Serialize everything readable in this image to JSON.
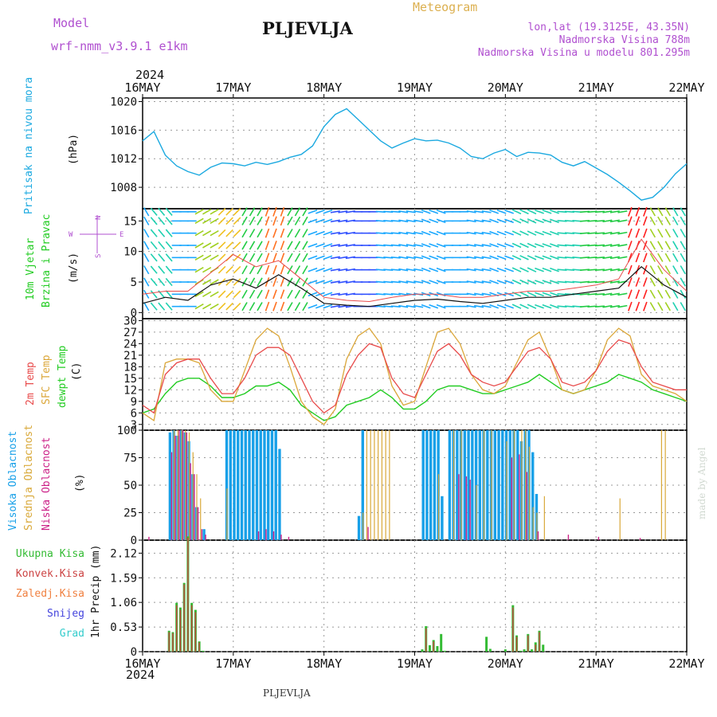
{
  "header": {
    "model_label": "Model",
    "model_name": "wrf-nmm_v3.9.1 e1km",
    "station": "PLJEVLJA",
    "meteogram": "Meteogram",
    "coords": "lon,lat (19.3125E, 43.35N)",
    "altitude": "Nadmorska Visina 788m",
    "model_altitude": "Nadmorska Visina u modelu 801.295m",
    "year_top": "2024",
    "year_bottom": "2024",
    "footer_station": "PLJEVLJA",
    "credit": "made by Angel"
  },
  "x_ticks": [
    "16MAY",
    "17MAY",
    "18MAY",
    "19MAY",
    "20MAY",
    "21MAY",
    "22MAY"
  ],
  "panel_labels": {
    "pressure": [
      "Pritisak na nivou mora",
      "(hPa)"
    ],
    "wind": [
      "10m Vjetar",
      "Brzina i Pravac",
      "(m/s)"
    ],
    "compass": [
      "N",
      "S",
      "W",
      "E"
    ],
    "temp": [
      "2m Temp",
      "SFC Temp",
      "dewpt Temp",
      "(C)"
    ],
    "cloud": [
      "Visoka Oblacnost",
      "Srednja Oblacnost",
      "Niska Oblacnost",
      "(%)"
    ],
    "precip": [
      "Ukupna Kisa",
      "Konvek.Kisa",
      "Zaledj.Kisa",
      "Snijeg",
      "Grad",
      "1hr Precip (mm)"
    ]
  },
  "colors": {
    "pressure": "#1ba9e0",
    "t2m": "#e84a4a",
    "sfc": "#dba73a",
    "dewpt": "#22cc22",
    "high_cloud": "#18a0e8",
    "mid_cloud": "#d9a93a",
    "low_cloud": "#cc2288",
    "precip_total": "#33bb33",
    "precip_conv": "#cc4444",
    "precip_frz": "#f08040",
    "snow": "#4444dd",
    "hail": "#33cccc",
    "purple": "#b050d0",
    "title_gold": "#dcb050"
  },
  "chart_data": [
    {
      "type": "line",
      "title": "Pritisak na nivou mora",
      "ylabel": "(hPa)",
      "xlim_hours": [
        0,
        144
      ],
      "ylim": [
        1005,
        1020.5
      ],
      "y_ticks": [
        1008,
        1012,
        1016,
        1020
      ],
      "series": [
        {
          "x": [
            0,
            3,
            6,
            9,
            12,
            15,
            18,
            21,
            24,
            27,
            30,
            33,
            36,
            39,
            42,
            45,
            48,
            51,
            54,
            57,
            60,
            63,
            66,
            69,
            72,
            75,
            78,
            81,
            84,
            87,
            90,
            93,
            96,
            99,
            102,
            105,
            108,
            111,
            114,
            117,
            120,
            123,
            126,
            129,
            132,
            135,
            138,
            141,
            144
          ],
          "values": [
            1014.5,
            1015.8,
            1012.5,
            1011.0,
            1010.2,
            1009.7,
            1010.8,
            1011.4,
            1011.3,
            1011.0,
            1011.5,
            1011.2,
            1011.6,
            1012.2,
            1012.6,
            1013.8,
            1016.5,
            1018.2,
            1019.0,
            1017.5,
            1016.0,
            1014.5,
            1013.5,
            1014.2,
            1014.8,
            1014.5,
            1014.6,
            1014.2,
            1013.5,
            1012.3,
            1012.0,
            1012.8,
            1013.3,
            1012.3,
            1012.9,
            1012.8,
            1012.5,
            1011.5,
            1011.0,
            1011.6,
            1010.7,
            1009.8,
            1008.7,
            1007.5,
            1006.2,
            1006.6,
            1008.0,
            1009.9,
            1011.3
          ]
        }
      ]
    },
    {
      "type": "line",
      "title": "10m Vjetar Brzina i Pravac",
      "ylabel": "(m/s)",
      "xlim_hours": [
        0,
        144
      ],
      "ylim": [
        -1,
        17
      ],
      "y_ticks": [
        0,
        5,
        10,
        15
      ],
      "series": [
        {
          "name": "speed",
          "x": [
            0,
            6,
            12,
            18,
            24,
            30,
            36,
            42,
            48,
            54,
            60,
            66,
            72,
            78,
            84,
            90,
            96,
            102,
            108,
            114,
            120,
            126,
            132,
            138,
            144
          ],
          "values": [
            1.5,
            2.5,
            2.0,
            4.5,
            5.5,
            4.0,
            6.2,
            4.0,
            1.5,
            1.2,
            1.0,
            1.5,
            2.0,
            2.2,
            1.8,
            1.5,
            2.0,
            2.5,
            2.5,
            3.0,
            3.5,
            4.0,
            7.5,
            4.5,
            2.5
          ]
        },
        {
          "name": "gust",
          "x": [
            0,
            6,
            12,
            18,
            24,
            30,
            36,
            42,
            48,
            54,
            60,
            66,
            72,
            78,
            84,
            90,
            96,
            102,
            108,
            114,
            120,
            126,
            132,
            138,
            144
          ],
          "values": [
            3.0,
            3.5,
            3.5,
            6.5,
            9.5,
            7.5,
            8.5,
            5.5,
            2.5,
            2.0,
            1.8,
            2.5,
            3.0,
            3.0,
            2.5,
            2.5,
            3.0,
            3.5,
            3.5,
            4.0,
            4.5,
            5.5,
            12.0,
            7.0,
            3.5
          ]
        }
      ],
      "direction_deg": [
        150,
        140,
        90,
        60,
        45,
        30,
        20,
        30,
        70,
        80,
        90,
        95,
        100,
        110,
        90,
        100,
        110,
        115,
        110,
        95,
        85,
        80,
        20,
        330,
        150
      ]
    },
    {
      "type": "line",
      "title": "Temperature",
      "ylabel": "(C)",
      "xlim_hours": [
        0,
        144
      ],
      "ylim": [
        1.5,
        30.5
      ],
      "y_ticks": [
        3,
        6,
        9,
        12,
        15,
        18,
        21,
        24,
        27,
        30
      ],
      "series": [
        {
          "name": "2m Temp",
          "x": [
            0,
            3,
            6,
            9,
            12,
            15,
            18,
            21,
            24,
            27,
            30,
            33,
            36,
            39,
            42,
            45,
            48,
            51,
            54,
            57,
            60,
            63,
            66,
            69,
            72,
            75,
            78,
            81,
            84,
            87,
            90,
            93,
            96,
            99,
            102,
            105,
            108,
            111,
            114,
            117,
            120,
            123,
            126,
            129,
            132,
            135,
            138,
            141,
            144
          ],
          "values": [
            8,
            6,
            16,
            19,
            20,
            20,
            15,
            11,
            11,
            15,
            21,
            23,
            23,
            21,
            15,
            9,
            6,
            8,
            16,
            21,
            24,
            23,
            15,
            11,
            10,
            16,
            22,
            24,
            21,
            16,
            14,
            13,
            14,
            18,
            22,
            23,
            20,
            14,
            13,
            14,
            17,
            22,
            25,
            24,
            18,
            14,
            13,
            12,
            12
          ]
        },
        {
          "name": "SFC Temp",
          "x": [
            0,
            3,
            6,
            9,
            12,
            15,
            18,
            21,
            24,
            27,
            30,
            33,
            36,
            39,
            42,
            45,
            48,
            51,
            54,
            57,
            60,
            63,
            66,
            69,
            72,
            75,
            78,
            81,
            84,
            87,
            90,
            93,
            96,
            99,
            102,
            105,
            108,
            111,
            114,
            117,
            120,
            123,
            126,
            129,
            132,
            135,
            138,
            141,
            144
          ],
          "values": [
            6,
            4,
            19,
            20,
            20,
            19,
            12,
            9,
            9,
            17,
            25,
            28,
            26,
            18,
            9,
            5,
            3,
            7,
            20,
            26,
            28,
            24,
            13,
            8,
            9,
            18,
            27,
            28,
            24,
            16,
            12,
            11,
            13,
            19,
            25,
            27,
            20,
            12,
            11,
            12,
            17,
            25,
            28,
            26,
            16,
            13,
            12,
            11,
            9
          ]
        },
        {
          "name": "dewpt Temp",
          "x": [
            0,
            3,
            6,
            9,
            12,
            15,
            18,
            21,
            24,
            27,
            30,
            33,
            36,
            39,
            42,
            45,
            48,
            51,
            54,
            57,
            60,
            63,
            66,
            69,
            72,
            75,
            78,
            81,
            84,
            87,
            90,
            93,
            96,
            99,
            102,
            105,
            108,
            111,
            114,
            117,
            120,
            123,
            126,
            129,
            132,
            135,
            138,
            141,
            144
          ],
          "values": [
            6,
            7,
            11,
            14,
            15,
            15,
            13,
            10,
            10,
            11,
            13,
            13,
            14,
            12,
            8,
            6,
            4,
            5,
            8,
            9,
            10,
            12,
            10,
            7,
            7,
            9,
            12,
            13,
            13,
            12,
            11,
            11,
            12,
            13,
            14,
            16,
            14,
            12,
            11,
            12,
            13,
            14,
            16,
            15,
            14,
            12,
            11,
            10,
            9
          ]
        }
      ]
    },
    {
      "type": "bar",
      "title": "Oblacnost",
      "ylabel": "(%)",
      "xlim_hours": [
        0,
        144
      ],
      "ylim": [
        0,
        100
      ],
      "y_ticks": [
        0,
        25,
        50,
        75,
        100
      ],
      "series": [
        {
          "name": "Visoka Oblacnost",
          "x": [
            7,
            8,
            9,
            10,
            11,
            12,
            13,
            14,
            16,
            22,
            23,
            24,
            25,
            26,
            27,
            28,
            29,
            30,
            31,
            32,
            33,
            34,
            35,
            36,
            57,
            58,
            74,
            75,
            76,
            77,
            78,
            79,
            81,
            82,
            83,
            84,
            85,
            86,
            87,
            88,
            89,
            90,
            91,
            92,
            93,
            94,
            95,
            96,
            97,
            98,
            99,
            100,
            101,
            102,
            103,
            104
          ],
          "values": [
            98,
            100,
            95,
            100,
            98,
            90,
            60,
            30,
            10,
            100,
            100,
            100,
            100,
            100,
            100,
            100,
            100,
            100,
            100,
            100,
            100,
            100,
            100,
            83,
            22,
            100,
            100,
            100,
            100,
            100,
            100,
            40,
            100,
            100,
            100,
            100,
            100,
            100,
            100,
            100,
            100,
            100,
            100,
            100,
            100,
            100,
            100,
            100,
            100,
            100,
            100,
            90,
            100,
            100,
            80,
            42
          ]
        },
        {
          "name": "Srednja Oblacnost",
          "x": [
            8,
            9,
            10,
            11,
            12,
            13,
            14,
            15,
            22,
            58,
            59,
            60,
            61,
            62,
            63,
            64,
            65,
            78,
            82,
            84,
            88,
            90,
            92,
            96,
            98,
            100,
            101,
            102,
            103,
            104,
            106,
            126,
            137,
            138
          ],
          "values": [
            100,
            100,
            100,
            100,
            98,
            80,
            60,
            38,
            47,
            25,
            100,
            100,
            100,
            100,
            100,
            100,
            100,
            60,
            100,
            100,
            50,
            100,
            100,
            90,
            100,
            100,
            100,
            85,
            30,
            25,
            40,
            38,
            100,
            100
          ]
        },
        {
          "name": "Niska Oblacnost",
          "x": [
            1,
            7,
            8,
            9,
            10,
            11,
            12,
            13,
            14,
            15,
            16,
            30,
            32,
            34,
            36,
            38,
            59,
            83,
            85,
            86,
            97,
            99,
            101,
            104,
            112,
            120,
            131
          ],
          "values": [
            3,
            80,
            95,
            100,
            100,
            98,
            70,
            60,
            30,
            10,
            5,
            8,
            10,
            8,
            5,
            3,
            12,
            60,
            58,
            55,
            75,
            78,
            62,
            8,
            5,
            3,
            2
          ]
        }
      ]
    },
    {
      "type": "bar",
      "title": "1hr Precip",
      "ylabel": "1hr Precip (mm)",
      "xlim_hours": [
        0,
        144
      ],
      "ylim": [
        0,
        2.4
      ],
      "y_ticks": [
        0,
        0.53,
        1.06,
        1.59,
        2.12
      ],
      "series": [
        {
          "name": "Ukupna Kisa",
          "x": [
            7,
            8,
            9,
            10,
            11,
            12,
            13,
            14,
            15,
            16,
            74,
            75,
            76,
            77,
            78,
            79,
            80,
            91,
            92,
            96,
            98,
            99,
            100,
            101,
            102,
            103,
            104,
            105,
            106
          ],
          "values": [
            0.45,
            0.42,
            1.05,
            0.95,
            1.48,
            2.48,
            1.05,
            0.9,
            0.22,
            0.02,
            0.05,
            0.55,
            0.14,
            0.25,
            0.12,
            0.38,
            0.02,
            0.32,
            0.06,
            0.05,
            1.0,
            0.35,
            0.02,
            0.05,
            0.38,
            0.05,
            0.2,
            0.45,
            0.15
          ]
        },
        {
          "name": "Konvek.Kisa",
          "x": [
            7,
            8,
            9,
            10,
            11,
            12,
            13,
            14,
            15,
            75,
            77,
            98,
            99,
            102,
            104,
            105
          ],
          "values": [
            0.42,
            0.4,
            1.0,
            0.9,
            1.45,
            2.45,
            1.0,
            0.85,
            0.2,
            0.5,
            0.22,
            0.95,
            0.32,
            0.35,
            0.15,
            0.42
          ]
        }
      ]
    }
  ]
}
